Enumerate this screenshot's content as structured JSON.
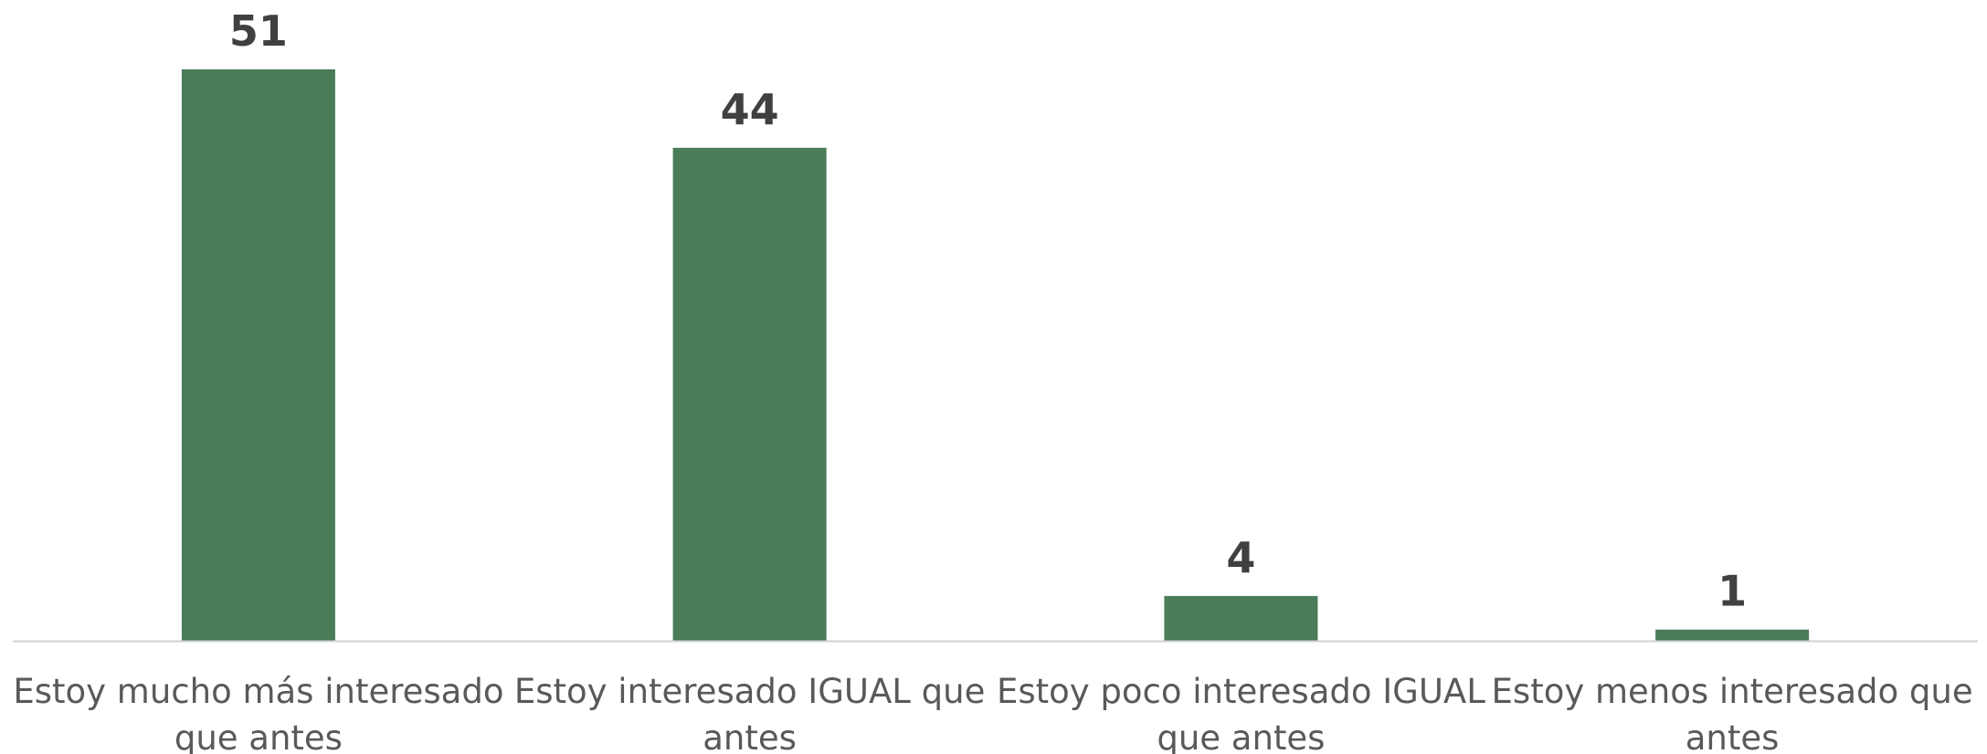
{
  "chart_data": {
    "type": "bar",
    "categories": [
      [
        "Estoy mucho más interesado",
        "que antes"
      ],
      [
        "Estoy interesado IGUAL que",
        "antes"
      ],
      [
        "Estoy poco interesado IGUAL",
        "que antes"
      ],
      [
        "Estoy menos interesado que",
        "antes"
      ]
    ],
    "values": [
      51,
      44,
      4,
      1
    ],
    "title": "",
    "xlabel": "",
    "ylabel": "",
    "ylim": [
      0,
      51
    ],
    "grid": false,
    "legend": "none",
    "data_labels": true,
    "colors": {
      "bar": "#4a7c59",
      "axis": "#d0d0d0",
      "value_text": "#404040",
      "category_text": "#595959"
    }
  }
}
